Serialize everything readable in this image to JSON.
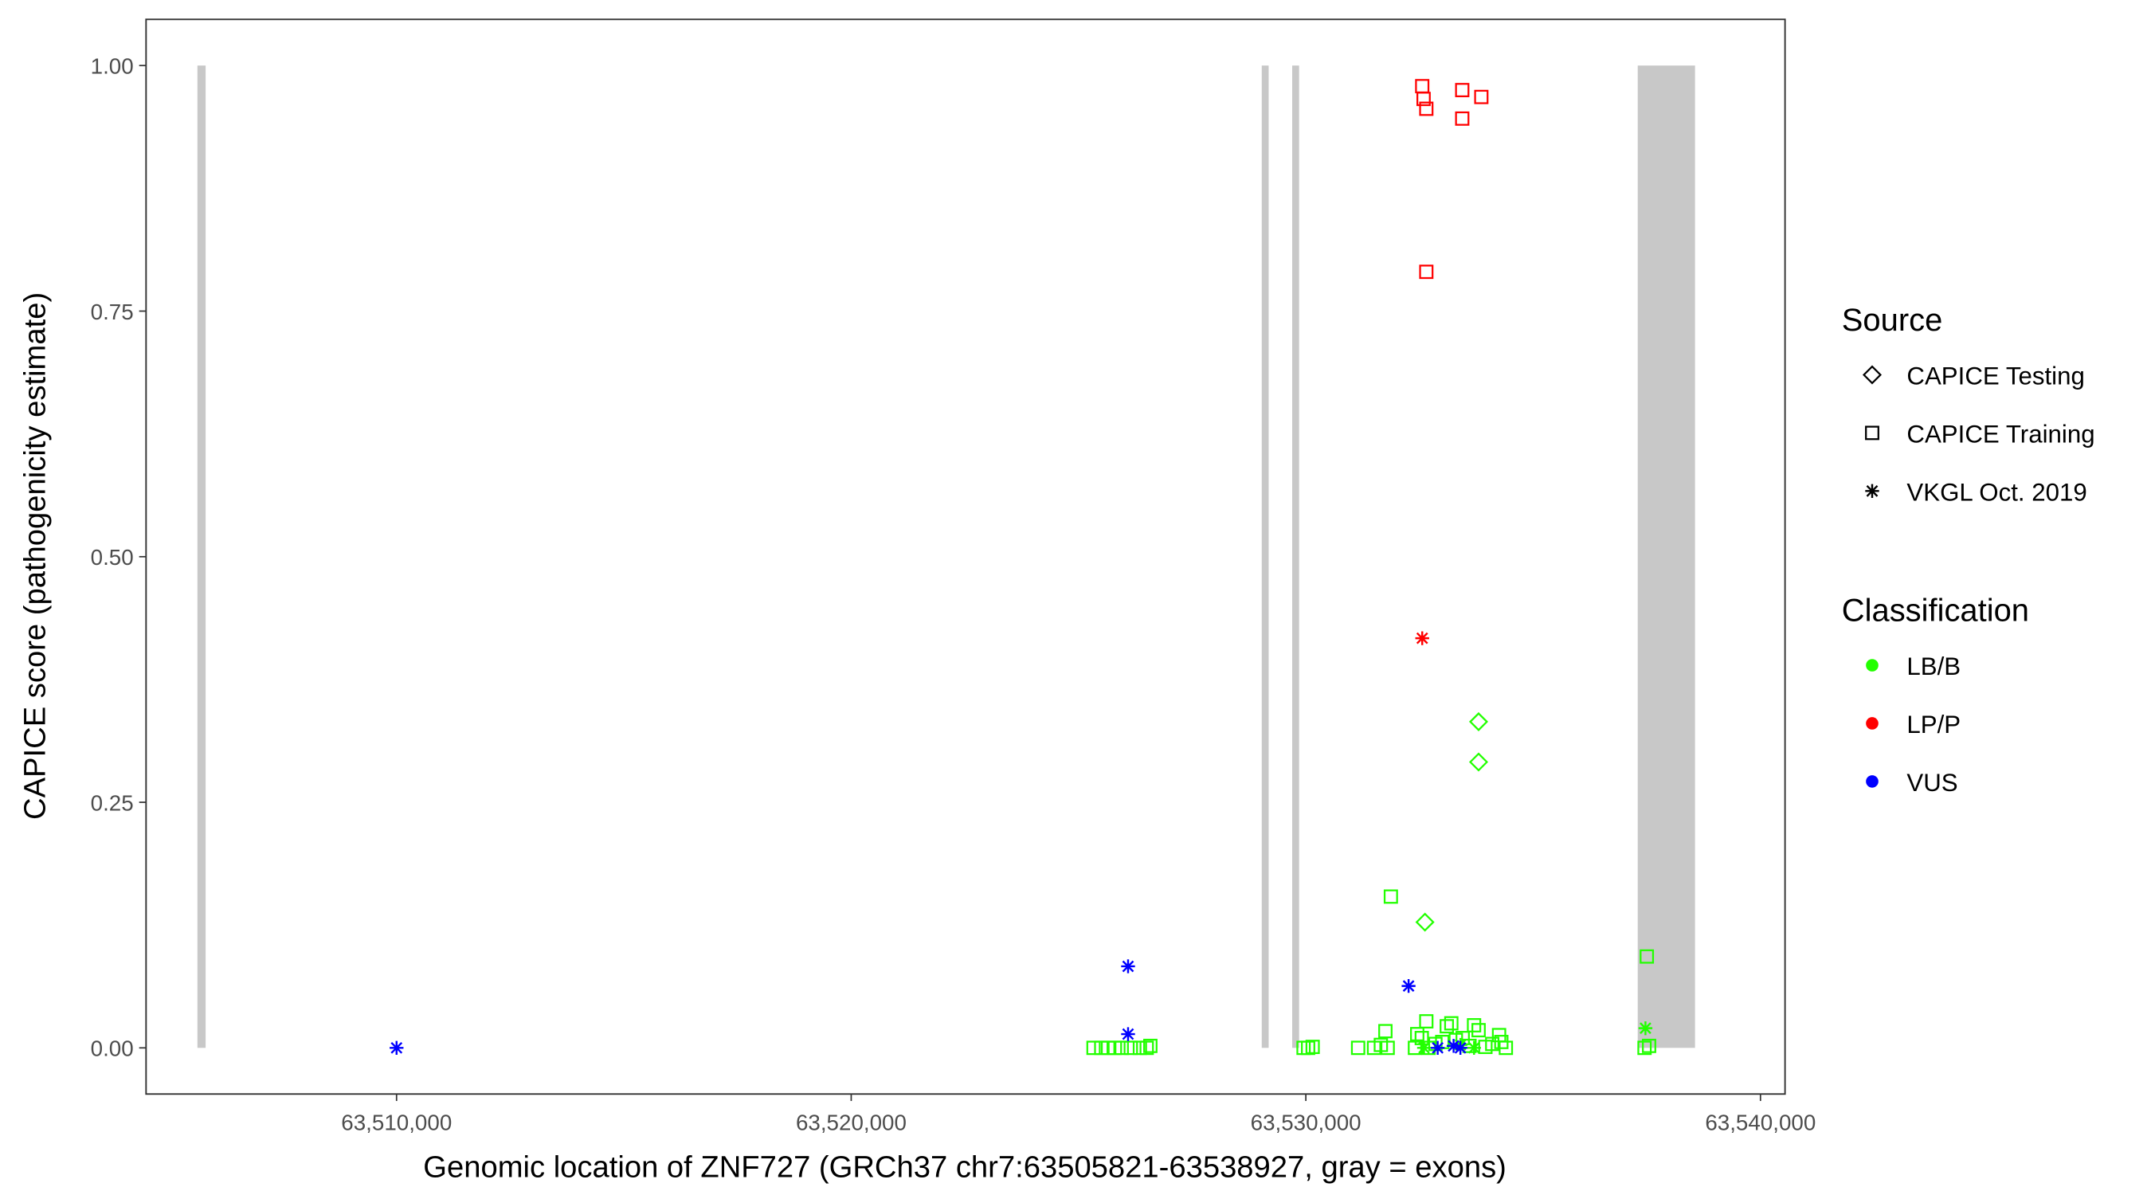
{
  "chart_data": {
    "type": "scatter",
    "xlabel": "Genomic location of ZNF727 (GRCh37 chr7:63505821-63538927, gray = exons)",
    "ylabel": "CAPICE score (pathogenicity estimate)",
    "xlim": [
      63504490,
      63540540
    ],
    "ylim": [
      -0.047,
      1.047
    ],
    "x_ticks": [
      63510000,
      63520000,
      63530000,
      63540000
    ],
    "x_tick_labels": [
      "63,510,000",
      "63,520,000",
      "63,530,000",
      "63,540,000"
    ],
    "y_ticks": [
      0,
      0.25,
      0.5,
      0.75,
      1.0
    ],
    "y_tick_labels": [
      "0.00",
      "0.25",
      "0.50",
      "0.75",
      "1.00"
    ],
    "grid": false,
    "exons": [
      [
        63505620,
        63505800
      ],
      [
        63529030,
        63529170
      ],
      [
        63529700,
        63529800
      ],
      [
        63537300,
        63538560
      ]
    ],
    "exon_color": "#C8C8C8",
    "legend": {
      "placement": "right",
      "source_title": "Source",
      "source_items": [
        {
          "label": "CAPICE Testing",
          "shape": "diamond"
        },
        {
          "label": "CAPICE Training",
          "shape": "square"
        },
        {
          "label": "VKGL Oct. 2019",
          "shape": "asterisk"
        }
      ],
      "class_title": "Classification",
      "class_items": [
        {
          "label": "LB/B",
          "color": "#22FF00"
        },
        {
          "label": "LP/P",
          "color": "#FF0000"
        },
        {
          "label": "VUS",
          "color": "#0000FF"
        }
      ]
    },
    "points": [
      {
        "x": 63532560,
        "y": 0.979,
        "shape": "square",
        "cls": "LP/P"
      },
      {
        "x": 63532590,
        "y": 0.966,
        "shape": "square",
        "cls": "LP/P"
      },
      {
        "x": 63532650,
        "y": 0.956,
        "shape": "square",
        "cls": "LP/P"
      },
      {
        "x": 63533440,
        "y": 0.975,
        "shape": "square",
        "cls": "LP/P"
      },
      {
        "x": 63533440,
        "y": 0.946,
        "shape": "square",
        "cls": "LP/P"
      },
      {
        "x": 63533860,
        "y": 0.968,
        "shape": "square",
        "cls": "LP/P"
      },
      {
        "x": 63532650,
        "y": 0.79,
        "shape": "square",
        "cls": "LP/P"
      },
      {
        "x": 63532560,
        "y": 0.417,
        "shape": "asterisk",
        "cls": "LP/P"
      },
      {
        "x": 63533800,
        "y": 0.332,
        "shape": "diamond",
        "cls": "LB/B"
      },
      {
        "x": 63533800,
        "y": 0.291,
        "shape": "diamond",
        "cls": "LB/B"
      },
      {
        "x": 63532620,
        "y": 0.128,
        "shape": "diamond",
        "cls": "LB/B"
      },
      {
        "x": 63531870,
        "y": 0.154,
        "shape": "square",
        "cls": "LB/B"
      },
      {
        "x": 63537500,
        "y": 0.093,
        "shape": "square",
        "cls": "LB/B"
      },
      {
        "x": 63537470,
        "y": 0.02,
        "shape": "asterisk",
        "cls": "LB/B"
      },
      {
        "x": 63525330,
        "y": 0,
        "shape": "square",
        "cls": "LB/B"
      },
      {
        "x": 63525500,
        "y": 0,
        "shape": "square",
        "cls": "LB/B"
      },
      {
        "x": 63525650,
        "y": 0,
        "shape": "square",
        "cls": "LB/B"
      },
      {
        "x": 63525800,
        "y": 0,
        "shape": "square",
        "cls": "LB/B"
      },
      {
        "x": 63525950,
        "y": 0,
        "shape": "square",
        "cls": "LB/B"
      },
      {
        "x": 63526150,
        "y": 0,
        "shape": "square",
        "cls": "LB/B"
      },
      {
        "x": 63526350,
        "y": 0,
        "shape": "square",
        "cls": "LB/B"
      },
      {
        "x": 63526500,
        "y": 0,
        "shape": "square",
        "cls": "LB/B"
      },
      {
        "x": 63526580,
        "y": 0.002,
        "shape": "square",
        "cls": "LB/B"
      },
      {
        "x": 63529950,
        "y": 0,
        "shape": "square",
        "cls": "LB/B"
      },
      {
        "x": 63530050,
        "y": 0,
        "shape": "square",
        "cls": "LB/B"
      },
      {
        "x": 63530150,
        "y": 0.001,
        "shape": "square",
        "cls": "LB/B"
      },
      {
        "x": 63531150,
        "y": 0,
        "shape": "square",
        "cls": "LB/B"
      },
      {
        "x": 63531500,
        "y": 0,
        "shape": "square",
        "cls": "LB/B"
      },
      {
        "x": 63531650,
        "y": 0.003,
        "shape": "square",
        "cls": "LB/B"
      },
      {
        "x": 63531750,
        "y": 0.017,
        "shape": "square",
        "cls": "LB/B"
      },
      {
        "x": 63531800,
        "y": 0,
        "shape": "square",
        "cls": "LB/B"
      },
      {
        "x": 63532400,
        "y": 0,
        "shape": "square",
        "cls": "LB/B"
      },
      {
        "x": 63532450,
        "y": 0.014,
        "shape": "square",
        "cls": "LB/B"
      },
      {
        "x": 63532550,
        "y": 0.01,
        "shape": "square",
        "cls": "LB/B"
      },
      {
        "x": 63532650,
        "y": 0.027,
        "shape": "square",
        "cls": "LB/B"
      },
      {
        "x": 63532700,
        "y": 0,
        "shape": "square",
        "cls": "LB/B"
      },
      {
        "x": 63532850,
        "y": 0.004,
        "shape": "square",
        "cls": "LB/B"
      },
      {
        "x": 63533000,
        "y": 0.006,
        "shape": "square",
        "cls": "LB/B"
      },
      {
        "x": 63533100,
        "y": 0.022,
        "shape": "square",
        "cls": "LB/B"
      },
      {
        "x": 63533200,
        "y": 0.025,
        "shape": "square",
        "cls": "LB/B"
      },
      {
        "x": 63533300,
        "y": 0.008,
        "shape": "square",
        "cls": "LB/B"
      },
      {
        "x": 63533450,
        "y": 0.01,
        "shape": "square",
        "cls": "LB/B"
      },
      {
        "x": 63533600,
        "y": 0.002,
        "shape": "square",
        "cls": "LB/B"
      },
      {
        "x": 63533700,
        "y": 0.023,
        "shape": "square",
        "cls": "LB/B"
      },
      {
        "x": 63533800,
        "y": 0.018,
        "shape": "square",
        "cls": "LB/B"
      },
      {
        "x": 63533950,
        "y": 0.001,
        "shape": "square",
        "cls": "LB/B"
      },
      {
        "x": 63534100,
        "y": 0.004,
        "shape": "square",
        "cls": "LB/B"
      },
      {
        "x": 63534250,
        "y": 0.013,
        "shape": "square",
        "cls": "LB/B"
      },
      {
        "x": 63534300,
        "y": 0.006,
        "shape": "square",
        "cls": "LB/B"
      },
      {
        "x": 63534400,
        "y": 0,
        "shape": "square",
        "cls": "LB/B"
      },
      {
        "x": 63537450,
        "y": 0,
        "shape": "square",
        "cls": "LB/B"
      },
      {
        "x": 63537550,
        "y": 0.002,
        "shape": "square",
        "cls": "LB/B"
      },
      {
        "x": 63532600,
        "y": 0,
        "shape": "asterisk",
        "cls": "LB/B"
      },
      {
        "x": 63533400,
        "y": 0.003,
        "shape": "asterisk",
        "cls": "LB/B"
      },
      {
        "x": 63533700,
        "y": 0,
        "shape": "asterisk",
        "cls": "LB/B"
      },
      {
        "x": 63510000,
        "y": 0,
        "shape": "asterisk",
        "cls": "VUS"
      },
      {
        "x": 63526090,
        "y": 0.083,
        "shape": "asterisk",
        "cls": "VUS"
      },
      {
        "x": 63526090,
        "y": 0.014,
        "shape": "asterisk",
        "cls": "VUS"
      },
      {
        "x": 63532260,
        "y": 0.063,
        "shape": "asterisk",
        "cls": "VUS"
      },
      {
        "x": 63532900,
        "y": 0,
        "shape": "asterisk",
        "cls": "VUS"
      },
      {
        "x": 63533250,
        "y": 0.002,
        "shape": "asterisk",
        "cls": "VUS"
      },
      {
        "x": 63533400,
        "y": 0,
        "shape": "asterisk",
        "cls": "VUS"
      }
    ]
  }
}
